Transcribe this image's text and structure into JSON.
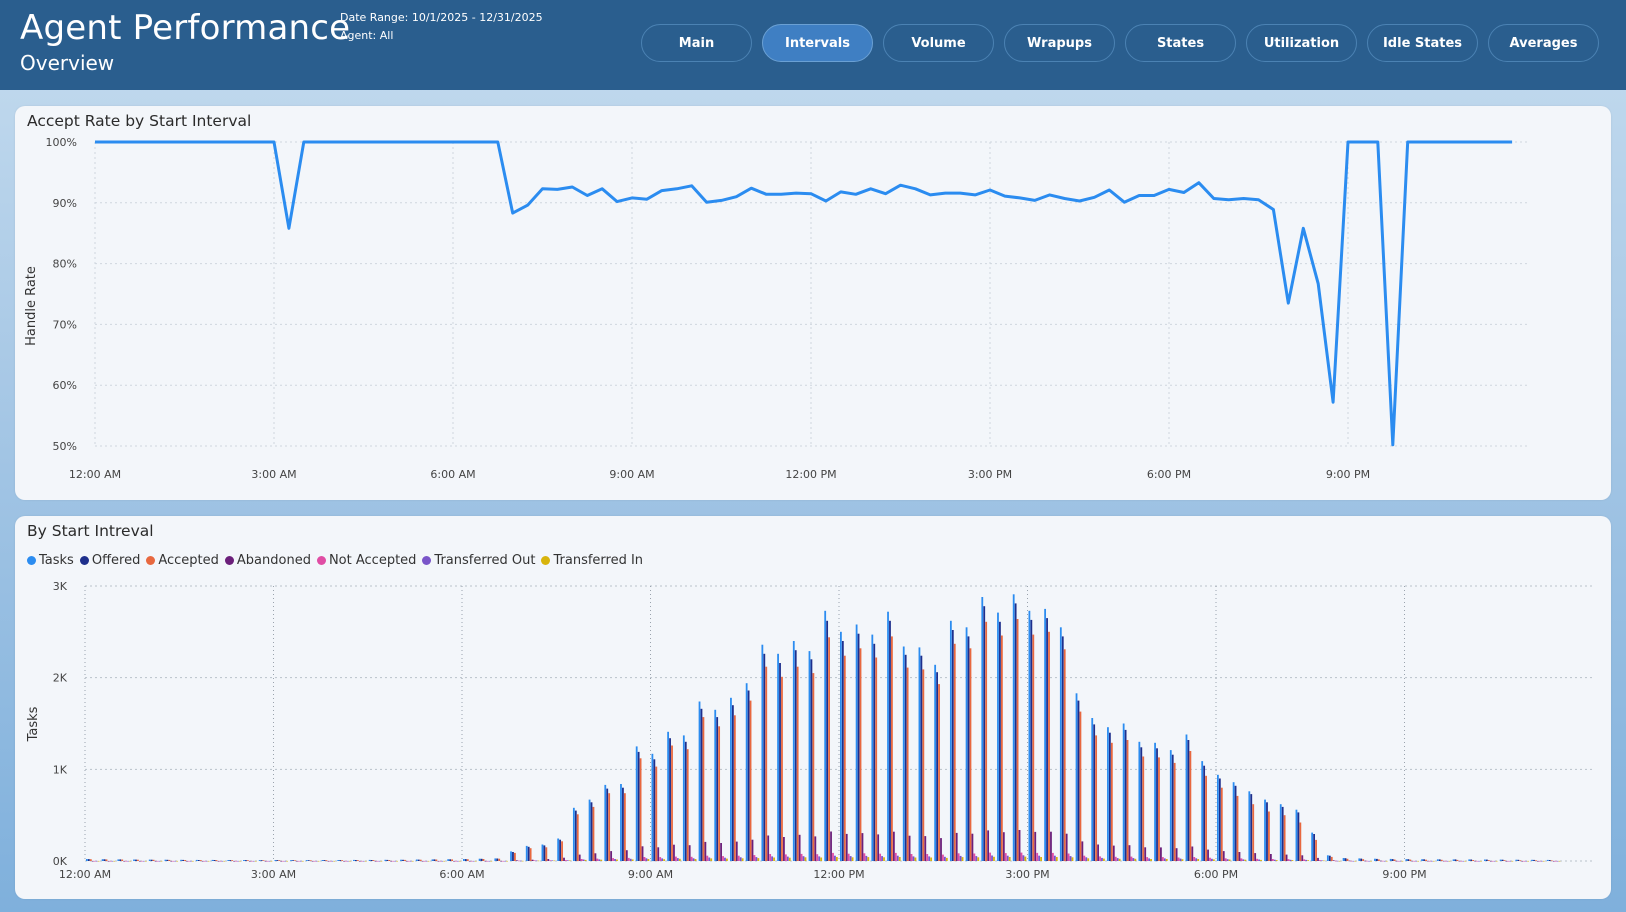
{
  "header": {
    "title": "Agent Performance",
    "subtitle": "Overview",
    "date_range": "Date Range: 10/1/2025 - 12/31/2025",
    "agent": "Agent: All"
  },
  "nav": [
    {
      "label": "Main",
      "active": false
    },
    {
      "label": "Intervals",
      "active": true
    },
    {
      "label": "Volume",
      "active": false
    },
    {
      "label": "Wrapups",
      "active": false
    },
    {
      "label": "States",
      "active": false
    },
    {
      "label": "Utilization",
      "active": false
    },
    {
      "label": "Idle States",
      "active": false
    },
    {
      "label": "Averages",
      "active": false
    }
  ],
  "colors": {
    "header_bg": "#2a5e8e",
    "line": "#2b8cf0",
    "tasks": "#2b8cf0",
    "offered": "#1e2f8c",
    "accepted": "#e8683f",
    "abandoned": "#6b1f7a",
    "not_accepted": "#e04da4",
    "transferred_out": "#7a55c9",
    "transferred_in": "#d8b40c"
  },
  "chart_data": [
    {
      "type": "line",
      "title": "Accept Rate by Start Interval",
      "xlabel": "",
      "ylabel": "Handle Rate",
      "ylim": [
        50,
        100
      ],
      "y_ticks": [
        "50%",
        "60%",
        "70%",
        "80%",
        "90%",
        "100%"
      ],
      "x_ticks": [
        "12:00 AM",
        "3:00 AM",
        "6:00 AM",
        "9:00 AM",
        "12:00 PM",
        "3:00 PM",
        "6:00 PM",
        "9:00 PM"
      ],
      "grid": true,
      "series": [
        {
          "x_hours": [
            0,
            0.25,
            0.5,
            0.75,
            1,
            1.25,
            1.5,
            1.75,
            2,
            2.25,
            2.5,
            2.75,
            3,
            3.25,
            3.5,
            3.75,
            4,
            4.25,
            4.5,
            4.75,
            5,
            5.25,
            5.5,
            5.75,
            6,
            6.25,
            6.5,
            6.75,
            7,
            7.25,
            7.5,
            7.75,
            8,
            8.25,
            8.5,
            8.75,
            9,
            9.25,
            9.5,
            9.75,
            10,
            10.25,
            10.5,
            10.75,
            11,
            11.25,
            11.5,
            11.75,
            12,
            12.25,
            12.5,
            12.75,
            13,
            13.25,
            13.5,
            13.75,
            14,
            14.25,
            14.5,
            14.75,
            15,
            15.25,
            15.5,
            15.75,
            16,
            16.25,
            16.5,
            16.75,
            17,
            17.25,
            17.5,
            17.75,
            18,
            18.25,
            18.5,
            18.75,
            19,
            19.25,
            19.5,
            19.75,
            20,
            20.25,
            20.5,
            20.75,
            21,
            21.25,
            21.5,
            21.75,
            22,
            22.25,
            22.5,
            22.75,
            23,
            23.25,
            23.5,
            23.75
          ],
          "values": [
            100,
            100,
            100,
            100,
            100,
            100,
            100,
            100,
            100,
            100,
            100,
            100,
            100,
            85.8,
            100,
            100,
            100,
            100,
            100,
            100,
            100,
            100,
            100,
            100,
            100,
            100,
            100,
            100,
            88.3,
            89.6,
            92.3,
            92.2,
            92.6,
            91.2,
            92.3,
            90.2,
            90.8,
            90.6,
            92.0,
            92.3,
            92.8,
            90.1,
            90.4,
            91.0,
            92.4,
            91.4,
            91.4,
            91.6,
            91.5,
            90.3,
            91.8,
            91.4,
            92.3,
            91.5,
            92.9,
            92.3,
            91.3,
            91.6,
            91.6,
            91.3,
            92.1,
            91.1,
            90.8,
            90.4,
            91.3,
            90.7,
            90.3,
            90.9,
            92.1,
            90.1,
            91.2,
            91.2,
            92.2,
            91.7,
            93.3,
            90.7,
            90.5,
            90.7,
            90.5,
            88.9,
            73.5,
            85.8,
            76.7,
            57.2,
            100,
            100,
            100,
            50.2,
            100,
            100,
            100,
            100,
            100,
            100,
            100,
            100
          ]
        }
      ]
    },
    {
      "type": "bar",
      "title": "By Start Intreval",
      "xlabel": "",
      "ylabel": "Tasks",
      "ylim": [
        0,
        3000
      ],
      "y_ticks": [
        "0K",
        "1K",
        "2K",
        "3K"
      ],
      "x_ticks": [
        "12:00 AM",
        "3:00 AM",
        "6:00 AM",
        "9:00 AM",
        "12:00 PM",
        "3:00 PM",
        "6:00 PM",
        "9:00 PM"
      ],
      "legend": "top-left",
      "grid": true,
      "x_hours": [
        0,
        0.25,
        0.5,
        0.75,
        1,
        1.25,
        1.5,
        1.75,
        2,
        2.25,
        2.5,
        2.75,
        3,
        3.25,
        3.5,
        3.75,
        4,
        4.25,
        4.5,
        4.75,
        5,
        5.25,
        5.5,
        5.75,
        6,
        6.25,
        6.5,
        6.75,
        7,
        7.25,
        7.5,
        7.75,
        8,
        8.25,
        8.5,
        8.75,
        9,
        9.25,
        9.5,
        9.75,
        10,
        10.25,
        10.5,
        10.75,
        11,
        11.25,
        11.5,
        11.75,
        12,
        12.25,
        12.5,
        12.75,
        13,
        13.25,
        13.5,
        13.75,
        14,
        14.25,
        14.5,
        14.75,
        15,
        15.25,
        15.5,
        15.75,
        16,
        16.25,
        16.5,
        16.75,
        17,
        17.25,
        17.5,
        17.75,
        18,
        18.25,
        18.5,
        18.75,
        19,
        19.25,
        19.5,
        19.75,
        20,
        20.25,
        20.5,
        20.75,
        21,
        21.25,
        21.5,
        21.75,
        22,
        22.25,
        22.5,
        22.75,
        23,
        23.25,
        23.5,
        23.75
      ],
      "series": [
        {
          "name": "Tasks",
          "values": [
            22,
            20,
            18,
            16,
            15,
            14,
            13,
            12,
            12,
            11,
            11,
            10,
            11,
            10,
            10,
            11,
            11,
            12,
            12,
            13,
            14,
            16,
            18,
            20,
            22,
            25,
            28,
            105,
            165,
            180,
            245,
            580,
            670,
            830,
            840,
            1250,
            1170,
            1410,
            1370,
            1740,
            1650,
            1780,
            1940,
            2360,
            2260,
            2400,
            2290,
            2730,
            2500,
            2580,
            2470,
            2720,
            2340,
            2330,
            2140,
            2620,
            2550,
            2880,
            2710,
            2910,
            2730,
            2750,
            2550,
            1830,
            1560,
            1460,
            1500,
            1300,
            1290,
            1210,
            1380,
            1090,
            940,
            860,
            760,
            670,
            620,
            560,
            310,
            62,
            33,
            28,
            25,
            23,
            21,
            20,
            19,
            18,
            17,
            16,
            15,
            14,
            13,
            12
          ]
        },
        {
          "name": "Offered",
          "values": [
            21,
            19,
            17,
            15,
            14,
            13,
            12,
            11,
            11,
            10,
            10,
            9,
            10,
            9,
            9,
            10,
            10,
            11,
            11,
            12,
            13,
            15,
            17,
            19,
            21,
            24,
            27,
            98,
            155,
            170,
            232,
            550,
            640,
            790,
            800,
            1190,
            1110,
            1340,
            1300,
            1660,
            1570,
            1700,
            1860,
            2260,
            2160,
            2300,
            2200,
            2620,
            2400,
            2480,
            2370,
            2620,
            2250,
            2240,
            2060,
            2520,
            2450,
            2780,
            2610,
            2810,
            2630,
            2650,
            2450,
            1750,
            1490,
            1400,
            1430,
            1240,
            1230,
            1160,
            1320,
            1040,
            900,
            820,
            730,
            640,
            590,
            530,
            295,
            58,
            31,
            26,
            23,
            21,
            20,
            19,
            18,
            17,
            16,
            15,
            14,
            13,
            12,
            11
          ]
        },
        {
          "name": "Accepted",
          "values": [
            20,
            18,
            16,
            14,
            13,
            12,
            11,
            10,
            10,
            9,
            9,
            8,
            9,
            8,
            8,
            9,
            9,
            10,
            10,
            11,
            12,
            14,
            16,
            18,
            20,
            22,
            25,
            88,
            140,
            150,
            215,
            510,
            590,
            740,
            740,
            1120,
            1030,
            1260,
            1220,
            1570,
            1470,
            1590,
            1750,
            2120,
            2010,
            2120,
            2050,
            2440,
            2240,
            2320,
            2220,
            2450,
            2110,
            2090,
            1930,
            2370,
            2320,
            2610,
            2460,
            2640,
            2470,
            2500,
            2310,
            1630,
            1370,
            1290,
            1320,
            1140,
            1130,
            1070,
            1200,
            930,
            800,
            710,
            620,
            540,
            500,
            420,
            230,
            45,
            24,
            20,
            18,
            16,
            15,
            14,
            13,
            12,
            11,
            10,
            9,
            8,
            8,
            7
          ]
        },
        {
          "name": "Abandoned",
          "values": [
            1,
            1,
            1,
            1,
            1,
            1,
            1,
            1,
            1,
            1,
            1,
            1,
            1,
            1,
            1,
            1,
            1,
            1,
            1,
            1,
            1,
            1,
            1,
            1,
            1,
            1,
            1,
            8,
            14,
            22,
            36,
            70,
            84,
            108,
            118,
            160,
            150,
            178,
            172,
            208,
            196,
            212,
            232,
            278,
            262,
            286,
            268,
            322,
            296,
            304,
            290,
            320,
            276,
            272,
            250,
            306,
            298,
            334,
            314,
            338,
            318,
            320,
            298,
            214,
            180,
            168,
            172,
            150,
            148,
            140,
            158,
            124,
            108,
            98,
            86,
            76,
            70,
            62,
            34,
            8,
            4,
            3,
            3,
            2,
            2,
            2,
            2,
            2,
            2,
            1,
            1,
            1,
            1,
            1
          ]
        },
        {
          "name": "Not Accepted",
          "values": [
            1,
            1,
            1,
            1,
            1,
            1,
            1,
            1,
            1,
            1,
            1,
            1,
            1,
            1,
            1,
            1,
            1,
            1,
            1,
            1,
            1,
            1,
            1,
            1,
            1,
            1,
            1,
            4,
            6,
            8,
            10,
            22,
            26,
            32,
            34,
            44,
            42,
            48,
            46,
            58,
            54,
            58,
            64,
            76,
            72,
            78,
            74,
            88,
            80,
            84,
            80,
            88,
            76,
            76,
            70,
            84,
            82,
            92,
            86,
            92,
            88,
            88,
            82,
            58,
            50,
            46,
            48,
            42,
            42,
            38,
            44,
            36,
            30,
            28,
            24,
            22,
            20,
            18,
            10,
            3,
            2,
            2,
            2,
            1,
            1,
            1,
            1,
            1,
            1,
            1,
            1,
            1,
            1,
            1
          ]
        },
        {
          "name": "Transferred Out",
          "values": [
            1,
            1,
            1,
            1,
            1,
            1,
            1,
            1,
            1,
            1,
            1,
            1,
            1,
            1,
            1,
            1,
            1,
            1,
            1,
            1,
            1,
            1,
            1,
            1,
            1,
            1,
            1,
            3,
            5,
            6,
            8,
            16,
            18,
            22,
            24,
            30,
            28,
            32,
            30,
            38,
            36,
            40,
            42,
            50,
            48,
            52,
            50,
            58,
            54,
            56,
            54,
            58,
            50,
            50,
            46,
            56,
            54,
            60,
            58,
            62,
            58,
            58,
            54,
            40,
            34,
            32,
            32,
            28,
            28,
            26,
            30,
            24,
            20,
            18,
            16,
            14,
            13,
            12,
            7,
            2,
            1,
            1,
            1,
            1,
            1,
            1,
            1,
            1,
            1,
            1,
            1,
            1,
            1,
            1
          ]
        },
        {
          "name": "Transferred In",
          "values": [
            1,
            1,
            1,
            1,
            1,
            1,
            1,
            1,
            1,
            1,
            1,
            1,
            1,
            1,
            1,
            1,
            1,
            1,
            1,
            1,
            1,
            1,
            1,
            1,
            1,
            1,
            1,
            2,
            4,
            5,
            6,
            12,
            14,
            16,
            18,
            22,
            20,
            24,
            22,
            28,
            26,
            30,
            32,
            38,
            36,
            40,
            38,
            44,
            40,
            42,
            40,
            44,
            38,
            38,
            34,
            42,
            40,
            46,
            44,
            48,
            44,
            44,
            40,
            30,
            26,
            24,
            24,
            22,
            22,
            20,
            22,
            18,
            16,
            14,
            12,
            10,
            10,
            9,
            5,
            1,
            1,
            1,
            1,
            1,
            1,
            1,
            1,
            1,
            1,
            1,
            1,
            1,
            1,
            1
          ]
        }
      ]
    }
  ]
}
